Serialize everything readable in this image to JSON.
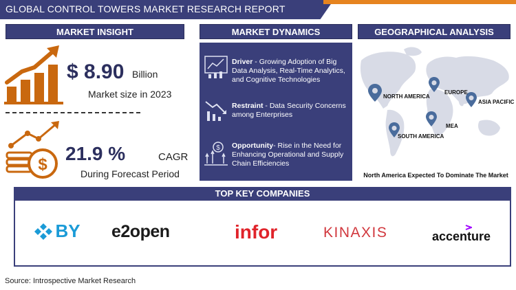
{
  "header": {
    "title": "GLOBAL CONTROL TOWERS MARKET RESEARCH REPORT"
  },
  "market_insight": {
    "heading": "MARKET INSIGHT",
    "market_value": "$ 8.90",
    "market_unit": "Billion",
    "market_label": "Market size in 2023",
    "cagr_value": "21.9 %",
    "cagr_unit": "CAGR",
    "cagr_label": "During Forecast Period"
  },
  "market_dynamics": {
    "heading": "MARKET DYNAMICS",
    "driver_title": "Driver",
    "driver_text": " -  Growing Adoption of Big Data Analysis, Real-Time Analytics, and Cognitive Technologies",
    "restraint_title": "Restraint",
    "restraint_text": " -  Data Security Concerns among Enterprises",
    "opportunity_title": "Opportunity",
    "opportunity_text": "-   Rise in the Need for Enhancing Operational and Supply Chain Efficiencies"
  },
  "geographical_analysis": {
    "heading": "GEOGRAPHICAL ANALYSIS",
    "regions": [
      "NORTH AMERICA",
      "EUROPE",
      "ASIA PACIFIC",
      "MEA",
      "SOUTH AMERICA"
    ],
    "caption": "North America Expected To Dominate The Market"
  },
  "companies": {
    "heading": "TOP KEY COMPANIES",
    "list": [
      "BY",
      "e2open",
      "infor",
      "KINAXIS",
      "accenture"
    ]
  },
  "footer": {
    "source": "Source: Introspective Market Research"
  },
  "colors": {
    "navy": "#3a3f7a",
    "orange": "#e6841f",
    "infor_red": "#e0232a",
    "kinaxis_red": "#d1373d",
    "by_blue": "#1b9bd7",
    "accenture_purple": "#a100ff"
  }
}
